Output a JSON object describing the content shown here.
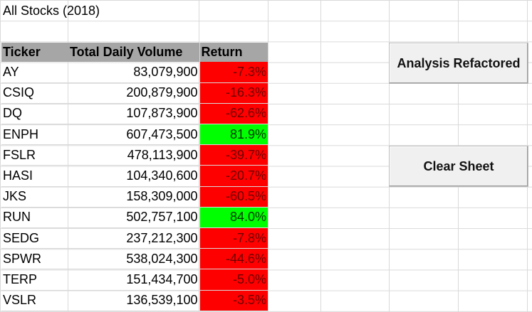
{
  "sheet": {
    "title": "All Stocks (2018)"
  },
  "table": {
    "headers": {
      "ticker": "Ticker",
      "volume": "Total Daily Volume",
      "return": "Return"
    },
    "rows": [
      {
        "ticker": "AY",
        "volume": "83,079,900",
        "return": "-7.3%",
        "status": "neg"
      },
      {
        "ticker": "CSIQ",
        "volume": "200,879,900",
        "return": "-16.3%",
        "status": "neg"
      },
      {
        "ticker": "DQ",
        "volume": "107,873,900",
        "return": "-62.6%",
        "status": "neg"
      },
      {
        "ticker": "ENPH",
        "volume": "607,473,500",
        "return": "81.9%",
        "status": "pos"
      },
      {
        "ticker": "FSLR",
        "volume": "478,113,900",
        "return": "-39.7%",
        "status": "neg"
      },
      {
        "ticker": "HASI",
        "volume": "104,340,600",
        "return": "-20.7%",
        "status": "neg"
      },
      {
        "ticker": "JKS",
        "volume": "158,309,000",
        "return": "-60.5%",
        "status": "neg"
      },
      {
        "ticker": "RUN",
        "volume": "502,757,100",
        "return": "84.0%",
        "status": "pos"
      },
      {
        "ticker": "SEDG",
        "volume": "237,212,300",
        "return": "-7.8%",
        "status": "neg"
      },
      {
        "ticker": "SPWR",
        "volume": "538,024,300",
        "return": "-44.6%",
        "status": "neg"
      },
      {
        "ticker": "TERP",
        "volume": "151,434,700",
        "return": "-5.0%",
        "status": "neg"
      },
      {
        "ticker": "VSLR",
        "volume": "136,539,100",
        "return": "-3.5%",
        "status": "neg"
      }
    ]
  },
  "buttons": {
    "analysis_label": "Analysis Refactored",
    "clear_label": "Clear Sheet"
  },
  "colors": {
    "negative": "#ff0000",
    "positive": "#00ff00",
    "header_fill": "#a6a6a6"
  }
}
